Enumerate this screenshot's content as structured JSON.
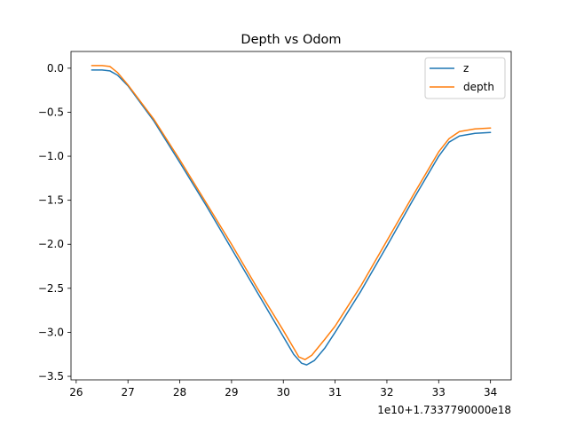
{
  "chart_data": {
    "type": "line",
    "title": "Depth vs Odom",
    "xlabel": "",
    "ylabel": "",
    "x_offset_label": "1e10+1.7337790000e18",
    "xlim": [
      25.9,
      34.4
    ],
    "ylim": [
      -3.54,
      0.19
    ],
    "xticks": [
      26,
      27,
      28,
      29,
      30,
      31,
      32,
      33,
      34
    ],
    "yticks": [
      0.0,
      -0.5,
      -1.0,
      -1.5,
      -2.0,
      -2.5,
      -3.0,
      -3.5
    ],
    "ytick_labels": [
      "0.0",
      "−0.5",
      "−1.0",
      "−1.5",
      "−2.0",
      "−2.5",
      "−3.0",
      "−3.5"
    ],
    "grid": false,
    "legend": {
      "placement": "top-right"
    },
    "series": [
      {
        "name": "z",
        "color": "#1f77b4",
        "points": [
          [
            26.3,
            -0.02
          ],
          [
            26.5,
            -0.02
          ],
          [
            26.65,
            -0.03
          ],
          [
            26.8,
            -0.08
          ],
          [
            27.0,
            -0.2
          ],
          [
            27.5,
            -0.6
          ],
          [
            28.0,
            -1.07
          ],
          [
            28.5,
            -1.55
          ],
          [
            29.0,
            -2.05
          ],
          [
            29.5,
            -2.55
          ],
          [
            30.0,
            -3.05
          ],
          [
            30.2,
            -3.25
          ],
          [
            30.35,
            -3.35
          ],
          [
            30.45,
            -3.37
          ],
          [
            30.6,
            -3.32
          ],
          [
            30.8,
            -3.18
          ],
          [
            31.0,
            -3.0
          ],
          [
            31.5,
            -2.53
          ],
          [
            32.0,
            -2.02
          ],
          [
            32.5,
            -1.5
          ],
          [
            33.0,
            -1.0
          ],
          [
            33.2,
            -0.84
          ],
          [
            33.4,
            -0.77
          ],
          [
            33.7,
            -0.74
          ],
          [
            34.0,
            -0.73
          ]
        ]
      },
      {
        "name": "depth",
        "color": "#ff7f0e",
        "points": [
          [
            26.3,
            0.03
          ],
          [
            26.5,
            0.03
          ],
          [
            26.65,
            0.02
          ],
          [
            26.8,
            -0.05
          ],
          [
            27.0,
            -0.19
          ],
          [
            27.5,
            -0.58
          ],
          [
            28.0,
            -1.04
          ],
          [
            28.5,
            -1.52
          ],
          [
            29.0,
            -2.0
          ],
          [
            29.5,
            -2.5
          ],
          [
            30.0,
            -2.98
          ],
          [
            30.2,
            -3.18
          ],
          [
            30.3,
            -3.28
          ],
          [
            30.42,
            -3.31
          ],
          [
            30.55,
            -3.26
          ],
          [
            30.8,
            -3.08
          ],
          [
            31.0,
            -2.93
          ],
          [
            31.5,
            -2.47
          ],
          [
            32.0,
            -1.96
          ],
          [
            32.5,
            -1.45
          ],
          [
            33.0,
            -0.95
          ],
          [
            33.2,
            -0.8
          ],
          [
            33.4,
            -0.72
          ],
          [
            33.7,
            -0.69
          ],
          [
            34.0,
            -0.68
          ]
        ]
      }
    ]
  }
}
